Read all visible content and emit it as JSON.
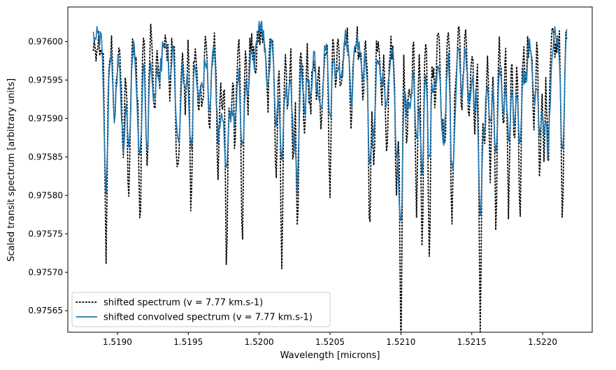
{
  "chart_data": {
    "type": "line",
    "title": "",
    "xlabel": "Wavelength [microns]",
    "ylabel": "Scaled transit spectrum [arbitrary units]",
    "xlim": [
      1.51865,
      1.52235
    ],
    "ylim": [
      0.975622,
      0.976045
    ],
    "xticks": [
      {
        "value": 1.519,
        "label": "1.5190"
      },
      {
        "value": 1.5195,
        "label": "1.5195"
      },
      {
        "value": 1.52,
        "label": "1.5200"
      },
      {
        "value": 1.5205,
        "label": "1.5205"
      },
      {
        "value": 1.521,
        "label": "1.5210"
      },
      {
        "value": 1.5215,
        "label": "1.5215"
      },
      {
        "value": 1.522,
        "label": "1.5220"
      }
    ],
    "yticks": [
      {
        "value": 0.97565,
        "label": "0.97565"
      },
      {
        "value": 0.9757,
        "label": "0.97570"
      },
      {
        "value": 0.97575,
        "label": "0.97575"
      },
      {
        "value": 0.9758,
        "label": "0.97580"
      },
      {
        "value": 0.97585,
        "label": "0.97585"
      },
      {
        "value": 0.9759,
        "label": "0.97590"
      },
      {
        "value": 0.97595,
        "label": "0.97595"
      },
      {
        "value": 0.976,
        "label": "0.97600"
      }
    ],
    "grid": false,
    "legend_position": "bottom-left",
    "continuum": 0.976021,
    "series": [
      {
        "name": "shifted spectrum (v = 7.77 km.s-1)",
        "color": "#000000",
        "style": "dotted",
        "lines": [
          [
            1.51892,
            0.975737
          ],
          [
            1.51898,
            0.975915
          ],
          [
            1.51904,
            0.97587
          ],
          [
            1.51908,
            0.975815
          ],
          [
            1.51914,
            0.97596
          ],
          [
            1.51916,
            0.97578
          ],
          [
            1.51921,
            0.97583
          ],
          [
            1.51926,
            0.97592
          ],
          [
            1.5193,
            0.97597
          ],
          [
            1.51937,
            0.97596
          ],
          [
            1.51942,
            0.97585
          ],
          [
            1.51944,
            0.97591
          ],
          [
            1.51948,
            0.97593
          ],
          [
            1.51952,
            0.975807
          ],
          [
            1.51957,
            0.97594
          ],
          [
            1.5196,
            0.97596
          ],
          [
            1.51965,
            0.97592
          ],
          [
            1.51971,
            0.97584
          ],
          [
            1.51974,
            0.97592
          ],
          [
            1.51977,
            0.975745
          ],
          [
            1.5198,
            0.97592
          ],
          [
            1.51983,
            0.97589
          ],
          [
            1.51988,
            0.97576
          ],
          [
            1.51992,
            0.97594
          ],
          [
            1.51997,
            0.97597
          ],
          [
            1.52006,
            0.97593
          ],
          [
            1.52012,
            0.97584
          ],
          [
            1.52016,
            0.97575
          ],
          [
            1.5202,
            0.97593
          ],
          [
            1.52024,
            0.97585
          ],
          [
            1.52027,
            0.97579
          ],
          [
            1.52032,
            0.97591
          ],
          [
            1.52036,
            0.97593
          ],
          [
            1.52041,
            0.97596
          ],
          [
            1.52044,
            0.97592
          ],
          [
            1.5205,
            0.97583
          ],
          [
            1.52054,
            0.975955
          ],
          [
            1.52058,
            0.97594
          ],
          [
            1.52065,
            0.97591
          ],
          [
            1.52073,
            0.97595
          ],
          [
            1.52078,
            0.97577
          ],
          [
            1.52081,
            0.97584
          ],
          [
            1.52086,
            0.97594
          ],
          [
            1.5209,
            0.97589
          ],
          [
            1.52097,
            0.97583
          ],
          [
            1.521,
            0.975643
          ],
          [
            1.52104,
            0.9759
          ],
          [
            1.52107,
            0.975935
          ],
          [
            1.52111,
            0.97581
          ],
          [
            1.52115,
            0.97576
          ],
          [
            1.5212,
            0.97574
          ],
          [
            1.52124,
            0.97595
          ],
          [
            1.52129,
            0.97592
          ],
          [
            1.52131,
            0.97588
          ],
          [
            1.52136,
            0.97576
          ],
          [
            1.52138,
            0.97594
          ],
          [
            1.52143,
            0.97594
          ],
          [
            1.52148,
            0.97592
          ],
          [
            1.52152,
            0.97592
          ],
          [
            1.52156,
            0.975645
          ],
          [
            1.52159,
            0.97588
          ],
          [
            1.52163,
            0.97585
          ],
          [
            1.52167,
            0.97578
          ],
          [
            1.52172,
            0.97591
          ],
          [
            1.52176,
            0.97582
          ],
          [
            1.5218,
            0.97589
          ],
          [
            1.52184,
            0.97581
          ],
          [
            1.52188,
            0.97596
          ],
          [
            1.52194,
            0.975905
          ],
          [
            1.52198,
            0.97583
          ],
          [
            1.52201,
            0.97588
          ],
          [
            1.52204,
            0.97587
          ],
          [
            1.52214,
            0.975775
          ]
        ]
      },
      {
        "name": "shifted convolved spectrum (v = 7.77 km.s-1)",
        "color": "#1f77b4",
        "style": "solid",
        "lines": [
          [
            1.51892,
            0.975827
          ],
          [
            1.51898,
            0.975925
          ],
          [
            1.51904,
            0.97589
          ],
          [
            1.51908,
            0.975875
          ],
          [
            1.51914,
            0.975965
          ],
          [
            1.51916,
            0.975875
          ],
          [
            1.51921,
            0.97587
          ],
          [
            1.51926,
            0.975935
          ],
          [
            1.5193,
            0.975975
          ],
          [
            1.51937,
            0.97597
          ],
          [
            1.51942,
            0.975915
          ],
          [
            1.51944,
            0.97594
          ],
          [
            1.51948,
            0.97595
          ],
          [
            1.51952,
            0.97588
          ],
          [
            1.51957,
            0.97595
          ],
          [
            1.5196,
            0.97597
          ],
          [
            1.51965,
            0.97594
          ],
          [
            1.51971,
            0.9759
          ],
          [
            1.51974,
            0.97594
          ],
          [
            1.51977,
            0.975857
          ],
          [
            1.5198,
            0.97594
          ],
          [
            1.51983,
            0.97592
          ],
          [
            1.51988,
            0.97587
          ],
          [
            1.51992,
            0.975955
          ],
          [
            1.51997,
            0.97598
          ],
          [
            1.52006,
            0.975945
          ],
          [
            1.52012,
            0.97591
          ],
          [
            1.52016,
            0.97586
          ],
          [
            1.5202,
            0.975945
          ],
          [
            1.52024,
            0.975905
          ],
          [
            1.52027,
            0.975835
          ],
          [
            1.52032,
            0.97593
          ],
          [
            1.52036,
            0.97595
          ],
          [
            1.52041,
            0.975965
          ],
          [
            1.52044,
            0.975945
          ],
          [
            1.5205,
            0.97591
          ],
          [
            1.52054,
            0.975965
          ],
          [
            1.52058,
            0.975955
          ],
          [
            1.52065,
            0.975935
          ],
          [
            1.52073,
            0.97596
          ],
          [
            1.52078,
            0.97586
          ],
          [
            1.52081,
            0.9759
          ],
          [
            1.52086,
            0.97595
          ],
          [
            1.5209,
            0.97593
          ],
          [
            1.52097,
            0.97589
          ],
          [
            1.521,
            0.975795
          ],
          [
            1.52104,
            0.975935
          ],
          [
            1.52107,
            0.97595
          ],
          [
            1.52111,
            0.97588
          ],
          [
            1.52115,
            0.97585
          ],
          [
            1.5212,
            0.975865
          ],
          [
            1.52124,
            0.97596
          ],
          [
            1.52129,
            0.97594
          ],
          [
            1.52131,
            0.97592
          ],
          [
            1.52136,
            0.97586
          ],
          [
            1.52138,
            0.97595
          ],
          [
            1.52143,
            0.97595
          ],
          [
            1.52148,
            0.97594
          ],
          [
            1.52152,
            0.97594
          ],
          [
            1.52156,
            0.975795
          ],
          [
            1.52159,
            0.97592
          ],
          [
            1.52163,
            0.97591
          ],
          [
            1.52167,
            0.97587
          ],
          [
            1.52172,
            0.97593
          ],
          [
            1.52176,
            0.9759
          ],
          [
            1.5218,
            0.975925
          ],
          [
            1.52184,
            0.97589
          ],
          [
            1.52188,
            0.975965
          ],
          [
            1.52194,
            0.975935
          ],
          [
            1.52198,
            0.9759
          ],
          [
            1.52201,
            0.975925
          ],
          [
            1.52204,
            0.97588
          ],
          [
            1.52214,
            0.975865
          ]
        ]
      }
    ]
  }
}
